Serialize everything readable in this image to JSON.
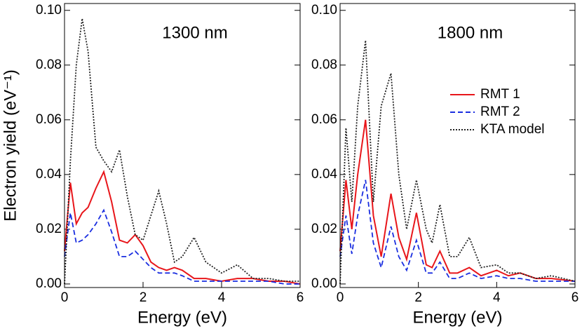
{
  "chart_data": [
    {
      "type": "line",
      "annotation": "1300 nm",
      "xlabel": "Energy (eV)",
      "ylabel": "Electron yield (eV⁻¹)",
      "x": [
        0,
        0.15,
        0.3,
        0.45,
        0.6,
        0.8,
        1.0,
        1.2,
        1.4,
        1.6,
        1.8,
        2.0,
        2.2,
        2.4,
        2.6,
        2.8,
        3.0,
        3.3,
        3.6,
        4.0,
        4.4,
        4.8,
        5.2,
        5.6,
        6.0
      ],
      "series": [
        {
          "color": "#e8161b",
          "dash": "solid",
          "values": [
            0.012,
            0.037,
            0.022,
            0.026,
            0.028,
            0.035,
            0.041,
            0.03,
            0.016,
            0.015,
            0.018,
            0.014,
            0.008,
            0.006,
            0.005,
            0.006,
            0.005,
            0.002,
            0.002,
            0.001,
            0.002,
            0.002,
            0.001,
            0.001,
            0
          ]
        },
        {
          "color": "#1a2ee0",
          "dash": "dashed",
          "values": [
            0.01,
            0.026,
            0.015,
            0.016,
            0.018,
            0.022,
            0.027,
            0.019,
            0.01,
            0.01,
            0.012,
            0.009,
            0.006,
            0.004,
            0.004,
            0.004,
            0.003,
            0.001,
            0.001,
            0.001,
            0.001,
            0.001,
            0.001,
            0,
            0
          ]
        },
        {
          "color": "#222222",
          "dash": "dotted",
          "values": [
            0,
            0.045,
            0.08,
            0.097,
            0.085,
            0.05,
            0.045,
            0.041,
            0.049,
            0.032,
            0.018,
            0.016,
            0.025,
            0.034,
            0.022,
            0.008,
            0.01,
            0.017,
            0.008,
            0.004,
            0.007,
            0.002,
            0.002,
            0.001,
            0.001
          ]
        }
      ],
      "xlim": [
        0,
        6
      ],
      "xticks": [
        0,
        2,
        4,
        6
      ],
      "ylim": [
        -0.0013,
        0.1025
      ],
      "yticks": [
        {
          "value": 0,
          "label": "0.00"
        },
        {
          "value": 0.02,
          "label": "0.02"
        },
        {
          "value": 0.04,
          "label": "0.04"
        },
        {
          "value": 0.06,
          "label": "0.06"
        },
        {
          "value": 0.08,
          "label": "0.08"
        },
        {
          "value": 0.1,
          "label": "0.10"
        }
      ]
    },
    {
      "type": "line",
      "annotation": "1800 nm",
      "xlabel": "Energy (eV)",
      "legend": "upper right",
      "x": [
        0,
        0.15,
        0.3,
        0.45,
        0.65,
        0.85,
        1.05,
        1.3,
        1.5,
        1.7,
        1.95,
        2.2,
        2.35,
        2.55,
        2.8,
        3.0,
        3.3,
        3.6,
        4.0,
        4.3,
        4.6,
        5.0,
        5.4,
        6.0
      ],
      "series": [
        {
          "name": "RMT 1",
          "color": "#e8161b",
          "dash": "solid",
          "values": [
            0.012,
            0.038,
            0.02,
            0.04,
            0.06,
            0.025,
            0.01,
            0.033,
            0.017,
            0.009,
            0.026,
            0.007,
            0.006,
            0.012,
            0.004,
            0.004,
            0.006,
            0.003,
            0.005,
            0.003,
            0.004,
            0.002,
            0.002,
            0.001
          ]
        },
        {
          "name": "RMT 2",
          "color": "#1a2ee0",
          "dash": "dashed",
          "values": [
            0.01,
            0.025,
            0.011,
            0.025,
            0.038,
            0.015,
            0.006,
            0.021,
            0.01,
            0.005,
            0.016,
            0.004,
            0.004,
            0.008,
            0.002,
            0.002,
            0.004,
            0.002,
            0.003,
            0.002,
            0.002,
            0.001,
            0.001,
            0.001
          ]
        },
        {
          "name": "KTA model",
          "color": "#222222",
          "dash": "dotted",
          "values": [
            0,
            0.057,
            0.03,
            0.065,
            0.089,
            0.03,
            0.065,
            0.077,
            0.04,
            0.02,
            0.038,
            0.02,
            0.015,
            0.029,
            0.01,
            0.01,
            0.017,
            0.006,
            0.007,
            0.004,
            0.004,
            0.002,
            0.003,
            0.001
          ]
        }
      ],
      "xlim": [
        0,
        6
      ],
      "xticks": [
        0,
        2,
        4,
        6
      ],
      "ylim": [
        -0.0013,
        0.1025
      ],
      "yticks": [
        {
          "value": 0,
          "label": "0.00"
        },
        {
          "value": 0.02,
          "label": "0.02"
        },
        {
          "value": 0.04,
          "label": "0.04"
        },
        {
          "value": 0.06,
          "label": "0.06"
        },
        {
          "value": 0.08,
          "label": "0.08"
        },
        {
          "value": 0.1,
          "label": "0.10"
        }
      ]
    }
  ]
}
